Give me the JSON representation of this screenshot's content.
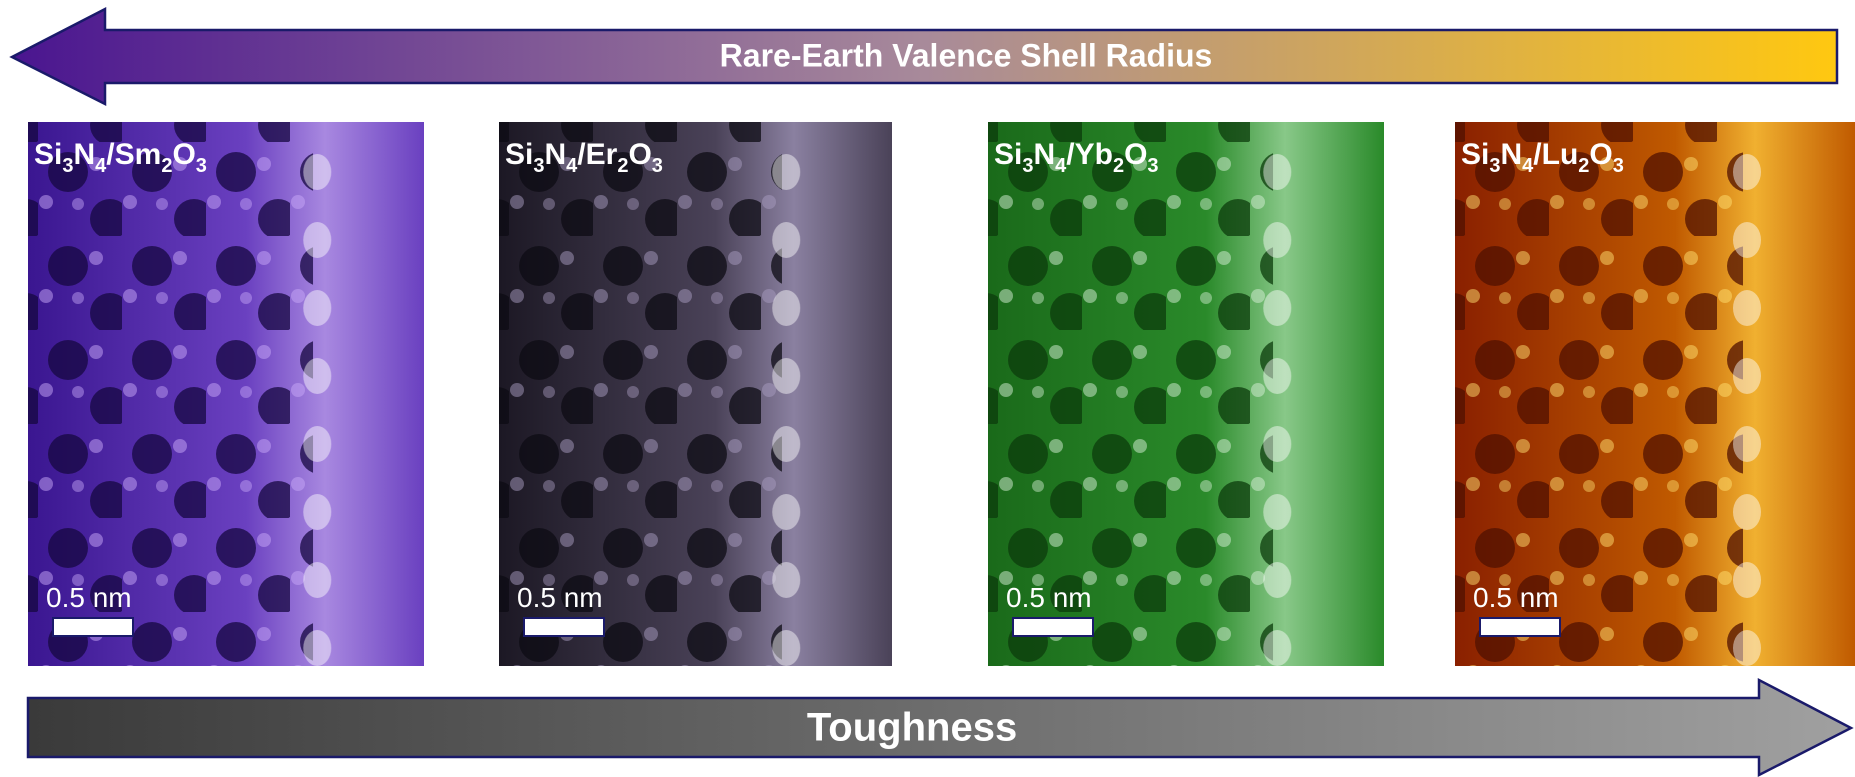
{
  "top_arrow": {
    "label": "Rare-Earth Valence Shell Radius"
  },
  "bottom_arrow": {
    "label": "Toughness"
  },
  "panels": [
    {
      "label_parts": [
        "Si",
        "3",
        "N",
        "4",
        "/Sm",
        "2",
        "O",
        "3"
      ],
      "scale_bar": "0.5 nm"
    },
    {
      "label_parts": [
        "Si",
        "3",
        "N",
        "4",
        "/Er",
        "2",
        "O",
        "3"
      ],
      "scale_bar": "0.5 nm"
    },
    {
      "label_parts": [
        "Si",
        "3",
        "N",
        "4",
        "/Yb",
        "2",
        "O",
        "3"
      ],
      "scale_bar": "0.5 nm"
    },
    {
      "label_parts": [
        "Si",
        "3",
        "N",
        "4",
        "/Lu",
        "2",
        "O",
        "3"
      ],
      "scale_bar": "0.5 nm"
    }
  ]
}
